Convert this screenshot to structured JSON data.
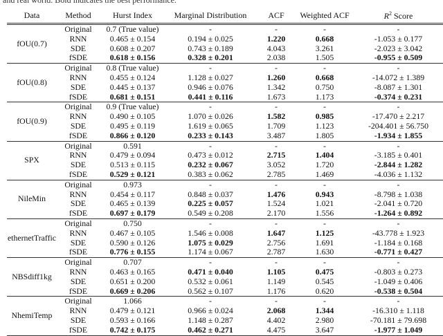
{
  "caption": "and real world. Bold indicates the best performance.",
  "headers": [
    "Data",
    "Method",
    "Hurst Index",
    "Marginal Distribution",
    "ACF",
    "Weighted ACF",
    "R"
  ],
  "r2_header_sup": "2",
  "r2_header_suffix": " Score",
  "groups": [
    {
      "data": "fOU(0.7)",
      "rows": [
        {
          "cells": [
            "Original",
            "0.7 (True value)",
            "-",
            "-",
            "-",
            "-"
          ],
          "bold": []
        },
        {
          "cells": [
            "RNN",
            "0.465 ± 0.154",
            "0.194 ± 0.025",
            "1.220",
            "0.668",
            "-1.053 ± 0.177"
          ],
          "bold": [
            3,
            4
          ]
        },
        {
          "cells": [
            "SDE",
            "0.608 ± 0.207",
            "0.743 ± 0.189",
            "4.043",
            "3.261",
            "-2.023 ± 3.042"
          ],
          "bold": []
        },
        {
          "cells": [
            "fSDE",
            "0.618 ± 0.156",
            "0.328 ± 0.201",
            "2.038",
            "1.505",
            "-0.955 ± 0.509"
          ],
          "bold": [
            1,
            2,
            5
          ]
        }
      ]
    },
    {
      "data": "fOU(0.8)",
      "rows": [
        {
          "cells": [
            "Original",
            "0.8 (True value)",
            "-",
            "-",
            "-",
            "-"
          ],
          "bold": []
        },
        {
          "cells": [
            "RNN",
            "0.455 ± 0.124",
            "1.128 ± 0.027",
            "1.260",
            "0.668",
            "-14.072 ± 1.389"
          ],
          "bold": [
            3,
            4
          ]
        },
        {
          "cells": [
            "SDE",
            "0.445 ± 0.137",
            "0.946 ± 0.076",
            "1.342",
            "0.750",
            "-8.087 ± 1.301"
          ],
          "bold": []
        },
        {
          "cells": [
            "fSDE",
            "0.681 ± 0.151",
            "0.441 ± 0.116",
            "1.673",
            "1.173",
            "-0.374 ± 0.231"
          ],
          "bold": [
            1,
            2,
            5
          ]
        }
      ]
    },
    {
      "data": "fOU(0.9)",
      "rows": [
        {
          "cells": [
            "Original",
            "0.9 (True value)",
            "-",
            "-",
            "-",
            "-"
          ],
          "bold": []
        },
        {
          "cells": [
            "RNN",
            "0.490 ± 0.105",
            "1.070 ± 0.026",
            "1.582",
            "0.985",
            "-17.470 ± 2.217"
          ],
          "bold": [
            3,
            4
          ]
        },
        {
          "cells": [
            "SDE",
            "0.495 ± 0.119",
            "1.619 ± 0.065",
            "1.709",
            "1.123",
            "-204.401 ± 56.750"
          ],
          "bold": []
        },
        {
          "cells": [
            "fSDE",
            "0.866 ± 0.120",
            "0.233 ± 0.143",
            "3.487",
            "1.805",
            "-1.934 ± 1.855"
          ],
          "bold": [
            1,
            2,
            5
          ]
        }
      ]
    },
    {
      "data": "SPX",
      "rows": [
        {
          "cells": [
            "Original",
            "0.591",
            "-",
            "-",
            "-",
            "-"
          ],
          "bold": []
        },
        {
          "cells": [
            "RNN",
            "0.479 ± 0.094",
            "0.473 ± 0.012",
            "2.715",
            "1.404",
            "-3.185 ± 0.401"
          ],
          "bold": [
            3,
            4
          ]
        },
        {
          "cells": [
            "SDE",
            "0.513 ± 0.115",
            "0.232 ± 0.067",
            "3.052",
            "1.720",
            "-2.844 ± 1.282"
          ],
          "bold": [
            2,
            5
          ]
        },
        {
          "cells": [
            "fSDE",
            "0.529 ± 0.121",
            "0.383 ± 0.062",
            "2.785",
            "1.469",
            "-4.036 ± 1.132"
          ],
          "bold": [
            1
          ]
        }
      ]
    },
    {
      "data": "NileMin",
      "rows": [
        {
          "cells": [
            "Original",
            "0.973",
            "-",
            "-",
            "-",
            "-"
          ],
          "bold": []
        },
        {
          "cells": [
            "RNN",
            "0.454 ± 0.117",
            "0.848 ± 0.037",
            "1.476",
            "0.943",
            "-8.798 ± 1.038"
          ],
          "bold": [
            3,
            4
          ]
        },
        {
          "cells": [
            "SDE",
            "0.465 ± 0.139",
            "0.225 ± 0.057",
            "1.524",
            "1.021",
            "-2.041 ± 0.720"
          ],
          "bold": [
            2
          ]
        },
        {
          "cells": [
            "fSDE",
            "0.697 ± 0.179",
            "0.549 ± 0.208",
            "2.170",
            "1.556",
            "-1.264 ± 0.892"
          ],
          "bold": [
            1,
            5
          ]
        }
      ]
    },
    {
      "data": "ethernetTraffic",
      "rows": [
        {
          "cells": [
            "Original",
            "0.750",
            "-",
            "-",
            "-",
            "-"
          ],
          "bold": []
        },
        {
          "cells": [
            "RNN",
            "0.467 ± 0.105",
            "1.546 ± 0.008",
            "1.647",
            "1.125",
            "-43.778 ± 1.923"
          ],
          "bold": [
            3,
            4
          ]
        },
        {
          "cells": [
            "SDE",
            "0.590 ± 0.126",
            "1.075 ± 0.029",
            "2.756",
            "1.691",
            "-1.184 ± 0.168"
          ],
          "bold": [
            2
          ]
        },
        {
          "cells": [
            "fSDE",
            "0.776 ± 0.155",
            "1.174 ± 0.067",
            "2.787",
            "1.630",
            "-0.771 ± 0.427"
          ],
          "bold": [
            1,
            5
          ]
        }
      ]
    },
    {
      "data": "NBSdiff1kg",
      "rows": [
        {
          "cells": [
            "Original",
            "0.707",
            "-",
            "-",
            "-",
            "-"
          ],
          "bold": []
        },
        {
          "cells": [
            "RNN",
            "0.463 ± 0.165",
            "0.471 ± 0.040",
            "1.105",
            "0.475",
            "-0.803 ± 0.273"
          ],
          "bold": [
            2,
            3,
            4
          ]
        },
        {
          "cells": [
            "SDE",
            "0.651 ± 0.200",
            "0.532 ± 0.061",
            "1.149",
            "0.545",
            "-1.049 ± 0.406"
          ],
          "bold": []
        },
        {
          "cells": [
            "fSDE",
            "0.669 ± 0.206",
            "0.562 ± 0.107",
            "1.176",
            "0.620",
            "-0.538 ± 0.504"
          ],
          "bold": [
            1,
            5
          ]
        }
      ]
    },
    {
      "data": "NhemiTemp",
      "rows": [
        {
          "cells": [
            "Original",
            "1.066",
            "-",
            "-",
            "-",
            "-"
          ],
          "bold": []
        },
        {
          "cells": [
            "RNN",
            "0.479 ± 0.121",
            "0.966 ± 0.024",
            "2.068",
            "1.344",
            "-16.310 ± 1.118"
          ],
          "bold": [
            3,
            4
          ]
        },
        {
          "cells": [
            "SDE",
            "0.593 ± 0.166",
            "1.148 ± 0.287",
            "4.402",
            "2.980",
            "-70.181 ± 79.698"
          ],
          "bold": []
        },
        {
          "cells": [
            "fSDE",
            "0.742 ± 0.175",
            "0.462 ± 0.271",
            "4.475",
            "3.647",
            "-1.977 ± 1.049"
          ],
          "bold": [
            1,
            2,
            5
          ]
        }
      ]
    }
  ]
}
